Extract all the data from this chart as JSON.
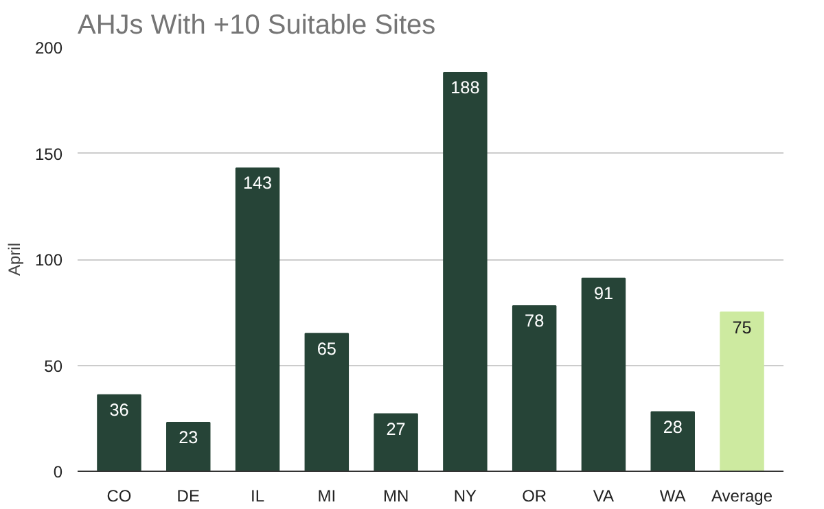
{
  "chart_data": {
    "type": "bar",
    "title": "AHJs With +10 Suitable Sites",
    "ylabel": "April",
    "categories": [
      "CO",
      "DE",
      "IL",
      "MI",
      "MN",
      "NY",
      "OR",
      "VA",
      "WA",
      "Average"
    ],
    "values": [
      36,
      23,
      143,
      65,
      27,
      188,
      78,
      91,
      28,
      75
    ],
    "colors": [
      "#264437",
      "#264437",
      "#264437",
      "#264437",
      "#264437",
      "#264437",
      "#264437",
      "#264437",
      "#264437",
      "#cdeaa0"
    ],
    "ylim": [
      0,
      200
    ],
    "yticks": [
      0,
      50,
      100,
      150,
      200
    ],
    "grid": "y",
    "data_labels": true
  }
}
